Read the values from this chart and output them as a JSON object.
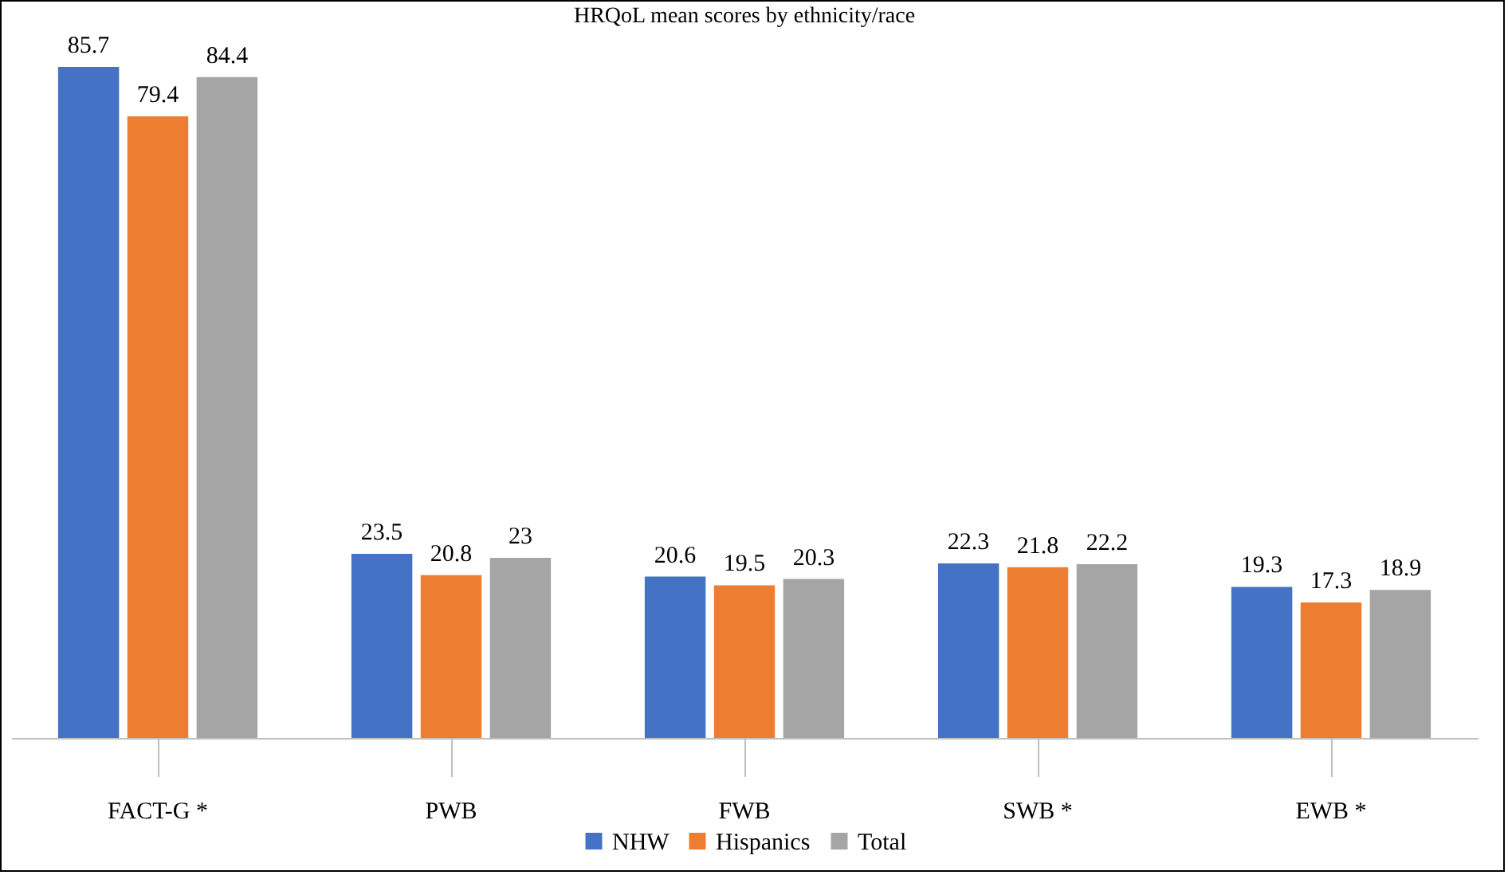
{
  "chart_data": {
    "type": "bar",
    "title": "HRQoL mean scores by ethnicity/race",
    "categories": [
      "FACT-G *",
      "PWB",
      "FWB",
      "SWB *",
      "EWB *"
    ],
    "series": [
      {
        "name": "NHW",
        "color": "#4472c4",
        "values": [
          85.7,
          23.5,
          20.6,
          22.3,
          19.3
        ]
      },
      {
        "name": "Hispanics",
        "color": "#ed7d31",
        "values": [
          79.4,
          20.8,
          19.5,
          21.8,
          17.3
        ]
      },
      {
        "name": "Total",
        "color": "#a5a5a5",
        "values": [
          84.4,
          23,
          20.3,
          22.2,
          18.9
        ]
      }
    ],
    "data_labels": true,
    "legend": "bottom"
  }
}
